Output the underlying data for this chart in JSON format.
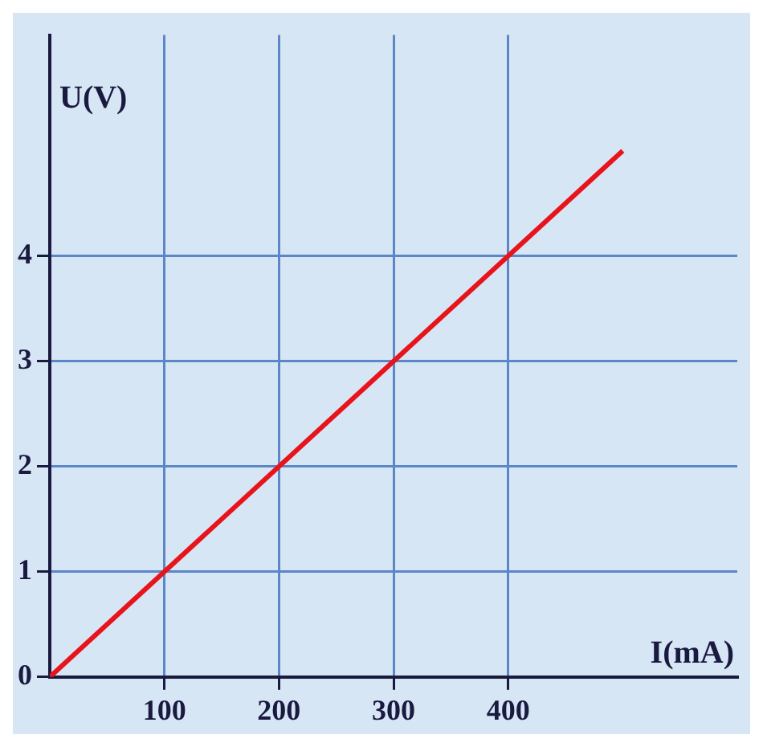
{
  "chart_data": {
    "type": "line",
    "xlabel": "I(mA)",
    "ylabel": "U(V)",
    "x": [
      0,
      500
    ],
    "series": [
      {
        "color": "#e8141c",
        "values": [
          0,
          5
        ]
      }
    ],
    "xlim": [
      0,
      600
    ],
    "ylim": [
      0,
      6.1
    ],
    "xticks": [
      100,
      200,
      300,
      400
    ],
    "yticks": [
      0,
      1,
      2,
      3,
      4
    ],
    "grid": true,
    "legend": false,
    "marker": "none",
    "line_style": "solid"
  }
}
